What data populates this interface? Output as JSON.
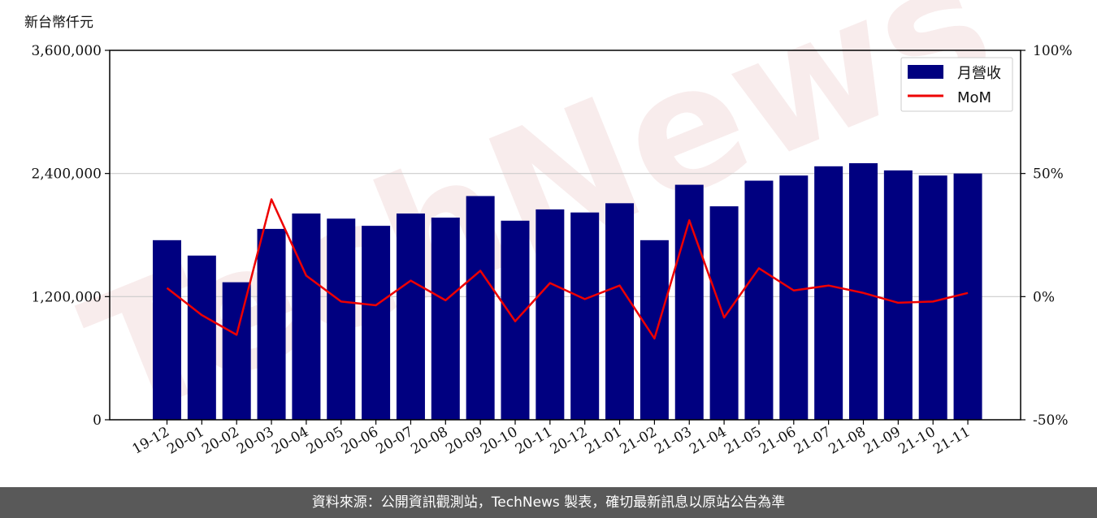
{
  "chart_data": {
    "type": "bar",
    "unit_label": "新台幣仟元",
    "categories": [
      "19-12",
      "20-01",
      "20-02",
      "20-03",
      "20-04",
      "20-05",
      "20-06",
      "20-07",
      "20-08",
      "20-09",
      "20-10",
      "20-11",
      "20-12",
      "21-01",
      "21-02",
      "21-03",
      "21-04",
      "21-05",
      "21-06",
      "21-07",
      "21-08",
      "21-09",
      "21-10",
      "21-11"
    ],
    "series": [
      {
        "name": "月營收",
        "axis": "left",
        "color": "#000080",
        "values": [
          1750000,
          1600000,
          1340000,
          1860000,
          2010000,
          1960000,
          1890000,
          2010000,
          1970000,
          2180000,
          1940000,
          2050000,
          2020000,
          2110000,
          1750000,
          2290000,
          2080000,
          2330000,
          2380000,
          2470000,
          2500000,
          2430000,
          2380000,
          2400000
        ]
      },
      {
        "name": "MoM",
        "axis": "right",
        "color": "#ee0000",
        "values": [
          3.5,
          -7.5,
          -15.5,
          39.5,
          8.5,
          -2,
          -3.5,
          6.5,
          -1.5,
          10.5,
          -10,
          5.5,
          -1,
          4.5,
          -17,
          31,
          -8.5,
          11.5,
          2.5,
          4.5,
          1.5,
          -2.5,
          -2,
          1.5
        ]
      }
    ],
    "ylim_left": [
      0,
      3600000
    ],
    "yticks_left": [
      "0",
      "1,200,000",
      "2,400,000",
      "3,600,000"
    ],
    "ylim_right": [
      -50,
      100
    ],
    "yticks_right": [
      "-50%",
      "0%",
      "50%",
      "100%"
    ],
    "grid": "horizontal",
    "legend_position": "top-right",
    "watermark": "TechNews"
  },
  "footer": {
    "source_text": "資料來源：公開資訊觀測站，TechNews 製表，確切最新訊息以原站公告為準"
  }
}
